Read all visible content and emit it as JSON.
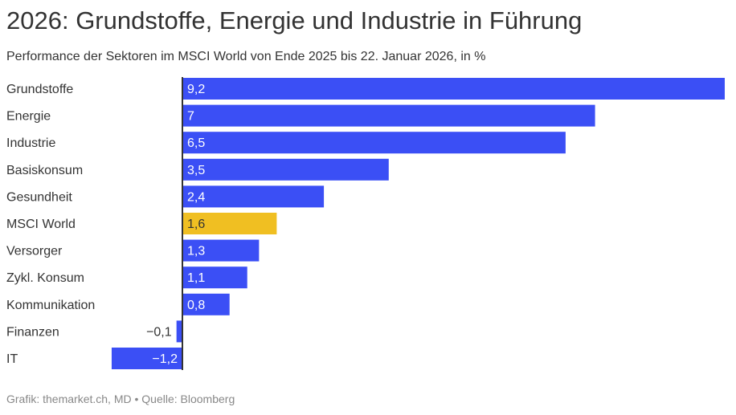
{
  "title": "2026: Grundstoffe, Energie und Industrie in Führung",
  "subtitle": "Performance der Sektoren im MSCI World von Ende 2025 bis 22. Januar 2026, in %",
  "source": "Grafik: themarket.ch, MD • Quelle: Bloomberg",
  "chart_data": {
    "type": "bar",
    "orientation": "horizontal",
    "categories": [
      "Grundstoffe",
      "Energie",
      "Industrie",
      "Basiskonsum",
      "Gesundheit",
      "MSCI World",
      "Versorger",
      "Zykl. Konsum",
      "Kommunikation",
      "Finanzen",
      "IT"
    ],
    "values": [
      9.2,
      7,
      6.5,
      3.5,
      2.4,
      1.6,
      1.3,
      1.1,
      0.8,
      -0.1,
      -1.2
    ],
    "value_labels": [
      "9,2",
      "7",
      "6,5",
      "3,5",
      "2,4",
      "1,6",
      "1,3",
      "1,1",
      "0,8",
      "−0,1",
      "−1,2"
    ],
    "highlight": "MSCI World",
    "colors": {
      "bar": "#3b4ff5",
      "highlight": "#f0bf22",
      "axis": "#333333"
    },
    "xlim": [
      -1.2,
      9.2
    ],
    "grid": false,
    "legend": false
  }
}
